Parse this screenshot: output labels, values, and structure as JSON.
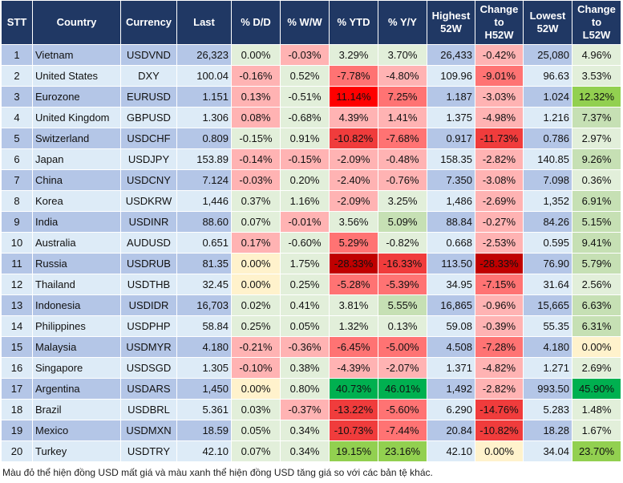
{
  "chart_data": {
    "type": "table",
    "columns": [
      "STT",
      "Country",
      "Currency",
      "Last",
      "% D/D",
      "% W/W",
      "% YTD",
      "% Y/Y",
      "Highest 52W",
      "Change to H52W",
      "Lowest 52W",
      "Change to L52W"
    ],
    "rows": [
      [
        "1",
        "Vietnam",
        "USDVND",
        "26,323",
        "0.00%",
        "-0.03%",
        "3.29%",
        "3.70%",
        "26,433",
        "-0.42%",
        "25,080",
        "4.96%"
      ],
      [
        "2",
        "United States",
        "DXY",
        "100.04",
        "-0.16%",
        "0.52%",
        "-7.78%",
        "-4.80%",
        "109.96",
        "-9.01%",
        "96.63",
        "3.53%"
      ],
      [
        "3",
        "Eurozone",
        "EURUSD",
        "1.151",
        "0.13%",
        "-0.51%",
        "11.14%",
        "7.25%",
        "1.187",
        "-3.03%",
        "1.024",
        "12.32%"
      ],
      [
        "4",
        "United Kingdom",
        "GBPUSD",
        "1.306",
        "0.08%",
        "-0.68%",
        "4.39%",
        "1.41%",
        "1.375",
        "-4.98%",
        "1.216",
        "7.37%"
      ],
      [
        "5",
        "Switzerland",
        "USDCHF",
        "0.809",
        "-0.15%",
        "0.91%",
        "-10.82%",
        "-7.68%",
        "0.917",
        "-11.73%",
        "0.786",
        "2.97%"
      ],
      [
        "6",
        "Japan",
        "USDJPY",
        "153.89",
        "-0.14%",
        "-0.15%",
        "-2.09%",
        "-0.48%",
        "158.35",
        "-2.82%",
        "140.85",
        "9.26%"
      ],
      [
        "7",
        "China",
        "USDCNY",
        "7.124",
        "-0.03%",
        "0.20%",
        "-2.40%",
        "-0.76%",
        "7.350",
        "-3.08%",
        "7.098",
        "0.36%"
      ],
      [
        "8",
        "Korea",
        "USDKRW",
        "1,446",
        "0.37%",
        "1.16%",
        "-2.09%",
        "3.25%",
        "1,486",
        "-2.69%",
        "1,352",
        "6.91%"
      ],
      [
        "9",
        "India",
        "USDINR",
        "88.60",
        "0.07%",
        "-0.01%",
        "3.56%",
        "5.09%",
        "88.84",
        "-0.27%",
        "84.26",
        "5.15%"
      ],
      [
        "10",
        "Australia",
        "AUDUSD",
        "0.651",
        "0.17%",
        "-0.60%",
        "5.29%",
        "-0.82%",
        "0.668",
        "-2.53%",
        "0.595",
        "9.41%"
      ],
      [
        "11",
        "Russia",
        "USDRUB",
        "81.35",
        "0.00%",
        "1.75%",
        "-28.33%",
        "-16.33%",
        "113.50",
        "-28.33%",
        "76.90",
        "5.79%"
      ],
      [
        "12",
        "Thailand",
        "USDTHB",
        "32.45",
        "0.00%",
        "0.25%",
        "-5.28%",
        "-5.39%",
        "34.95",
        "-7.15%",
        "31.64",
        "2.56%"
      ],
      [
        "13",
        "Indonesia",
        "USDIDR",
        "16,703",
        "0.02%",
        "0.41%",
        "3.81%",
        "5.55%",
        "16,865",
        "-0.96%",
        "15,665",
        "6.63%"
      ],
      [
        "14",
        "Philippines",
        "USDPHP",
        "58.84",
        "0.25%",
        "0.05%",
        "1.32%",
        "0.13%",
        "59.08",
        "-0.39%",
        "55.35",
        "6.31%"
      ],
      [
        "15",
        "Malaysia",
        "USDMYR",
        "4.180",
        "-0.21%",
        "-0.36%",
        "-6.45%",
        "-5.00%",
        "4.508",
        "-7.28%",
        "4.180",
        "0.00%"
      ],
      [
        "16",
        "Singapore",
        "USDSGD",
        "1.305",
        "-0.10%",
        "0.38%",
        "-4.39%",
        "-2.07%",
        "1.371",
        "-4.82%",
        "1.271",
        "2.69%"
      ],
      [
        "17",
        "Argentina",
        "USDARS",
        "1,450",
        "0.00%",
        "0.80%",
        "40.73%",
        "46.01%",
        "1,492",
        "-2.82%",
        "993.50",
        "45.90%"
      ],
      [
        "18",
        "Brazil",
        "USDBRL",
        "5.361",
        "0.03%",
        "-0.37%",
        "-13.22%",
        "-5.60%",
        "6.290",
        "-14.76%",
        "5.283",
        "1.48%"
      ],
      [
        "19",
        "Mexico",
        "USDMXN",
        "18.59",
        "0.05%",
        "0.34%",
        "-10.73%",
        "-7.44%",
        "20.84",
        "-10.82%",
        "18.28",
        "1.67%"
      ],
      [
        "20",
        "Turkey",
        "USDTRY",
        "42.10",
        "0.07%",
        "0.34%",
        "19.15%",
        "23.16%",
        "42.10",
        "0.00%",
        "34.04",
        "23.70%"
      ]
    ],
    "cell_colors": {
      "p": "#ffb3b3",
      "m": "#ff7373",
      "s": "#f03c3c",
      "r": "#ff0000",
      "d": "#c00000",
      "g": "#e2efda",
      "G": "#c6e0b4",
      "B": "#92d050",
      "D": "#00b050",
      "y": "#fff2cc"
    },
    "colored_columns": [
      4,
      5,
      6,
      7,
      9,
      11
    ],
    "color_codes": [
      "gpggpg",
      "pgmpmg",
      "pgrmpB",
      "pgpppG",
      "ggsmsg",
      "pppppG",
      "pgpppg",
      "ggpgpG",
      "gpgGpG",
      "pgmgpG",
      "ygdsdG",
      "ygmmmg",
      "gggGpG",
      "gggg pG",
      "ppmmmy",
      "pgpppg",
      "ygDDpD",
      "gpsmsg",
      "ggsmsg",
      "ggBByB"
    ],
    "header_color": "#203864",
    "row_colors": [
      "#b4c6e7",
      "#ddebf7"
    ]
  },
  "footnote": "Màu đỏ thể hiện đồng USD mất giá và màu xanh thể hiện đồng USD tăng giá so với các bản tệ khác."
}
